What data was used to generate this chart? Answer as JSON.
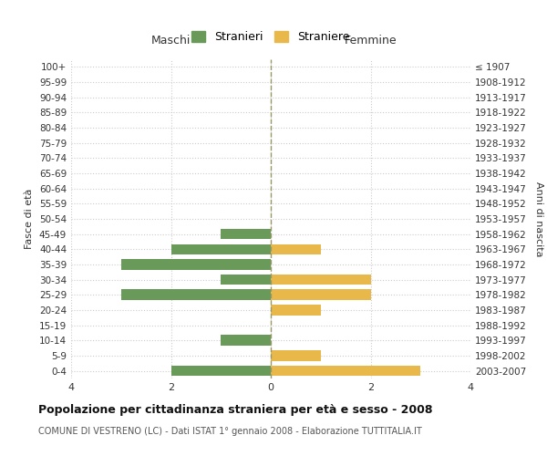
{
  "age_groups": [
    "100+",
    "95-99",
    "90-94",
    "85-89",
    "80-84",
    "75-79",
    "70-74",
    "65-69",
    "60-64",
    "55-59",
    "50-54",
    "45-49",
    "40-44",
    "35-39",
    "30-34",
    "25-29",
    "20-24",
    "15-19",
    "10-14",
    "5-9",
    "0-4"
  ],
  "birth_years": [
    "≤ 1907",
    "1908-1912",
    "1913-1917",
    "1918-1922",
    "1923-1927",
    "1928-1932",
    "1933-1937",
    "1938-1942",
    "1943-1947",
    "1948-1952",
    "1953-1957",
    "1958-1962",
    "1963-1967",
    "1968-1972",
    "1973-1977",
    "1978-1982",
    "1983-1987",
    "1988-1992",
    "1993-1997",
    "1998-2002",
    "2003-2007"
  ],
  "maschi": [
    0,
    0,
    0,
    0,
    0,
    0,
    0,
    0,
    0,
    0,
    0,
    1,
    2,
    3,
    1,
    3,
    0,
    0,
    1,
    0,
    2
  ],
  "femmine": [
    0,
    0,
    0,
    0,
    0,
    0,
    0,
    0,
    0,
    0,
    0,
    0,
    1,
    0,
    2,
    2,
    1,
    0,
    0,
    1,
    3
  ],
  "color_maschi": "#6a9a5a",
  "color_femmine": "#e8b84b",
  "title": "Popolazione per cittadinanza straniera per età e sesso - 2008",
  "subtitle": "COMUNE DI VESTRENO (LC) - Dati ISTAT 1° gennaio 2008 - Elaborazione TUTTITALIA.IT",
  "xlabel_left": "Maschi",
  "xlabel_right": "Femmine",
  "ylabel_left": "Fasce di età",
  "ylabel_right": "Anni di nascita",
  "legend_maschi": "Stranieri",
  "legend_femmine": "Straniere",
  "xlim": 4,
  "background_color": "#ffffff",
  "grid_color": "#cccccc",
  "dashed_line_color": "#999966"
}
